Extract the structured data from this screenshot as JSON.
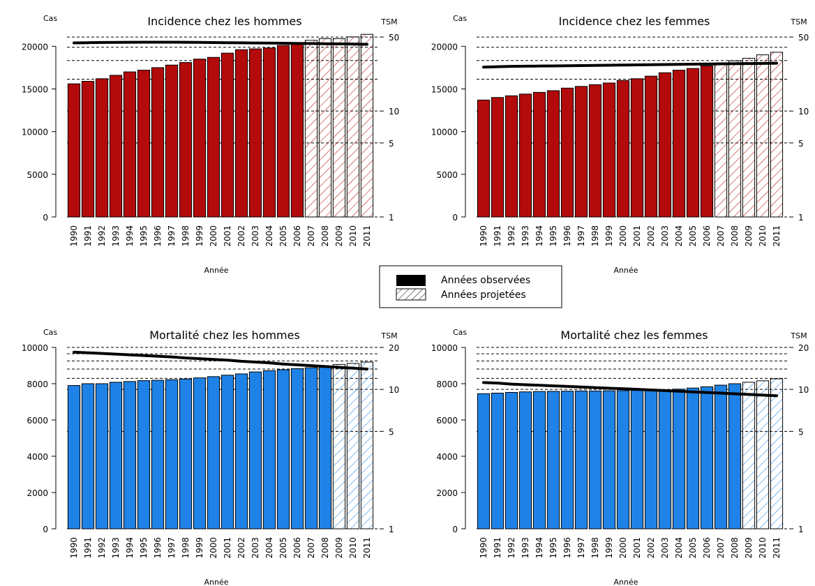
{
  "legend": {
    "observed_label": "Années observées",
    "projected_label": "Années projetées"
  },
  "colors": {
    "incidence": "#b30b0b",
    "mortality": "#1e82e6",
    "trend_line": "#000000"
  },
  "chart_data": [
    {
      "type": "bar",
      "title": "Incidence chez les hommes",
      "xlabel": "Année",
      "ylabel": "Cas",
      "y2label": "TSM",
      "ylim": [
        0,
        21500
      ],
      "yticks": [
        0,
        5000,
        10000,
        15000,
        20000
      ],
      "y2_log_scale": true,
      "y2ticks": [
        1,
        5,
        10,
        50
      ],
      "y2lim": [
        1,
        54
      ],
      "y2_gridlines": [
        5,
        10,
        20,
        30,
        40,
        50
      ],
      "categories": [
        "1990",
        "1991",
        "1992",
        "1993",
        "1994",
        "1995",
        "1996",
        "1997",
        "1998",
        "1999",
        "2000",
        "2001",
        "2002",
        "2003",
        "2004",
        "2005",
        "2006",
        "2007",
        "2008",
        "2009",
        "2010",
        "2011"
      ],
      "series": [
        {
          "type": "bar",
          "values": [
            15600,
            15900,
            16200,
            16600,
            17000,
            17200,
            17500,
            17800,
            18100,
            18500,
            18700,
            19200,
            19600,
            19700,
            19800,
            20100,
            20400,
            20700,
            20900,
            20900,
            21100,
            21400
          ],
          "projected_from": "2007"
        },
        {
          "type": "line",
          "axis": "y2",
          "values": [
            44,
            44.2,
            44.4,
            44.5,
            44.6,
            44.7,
            44.7,
            44.7,
            44.6,
            44.5,
            44.3,
            44.2,
            44.1,
            43.9,
            43.8,
            43.7,
            43.5,
            43.4,
            43.2,
            43.1,
            42.9,
            42.7
          ]
        }
      ]
    },
    {
      "type": "bar",
      "title": "Incidence chez les femmes",
      "xlabel": "Année",
      "ylabel": "Cas",
      "y2label": "TSM",
      "ylim": [
        0,
        21500
      ],
      "yticks": [
        0,
        5000,
        10000,
        15000,
        20000
      ],
      "y2_log_scale": true,
      "y2ticks": [
        1,
        5,
        10,
        50
      ],
      "y2lim": [
        1,
        54
      ],
      "y2_gridlines": [
        5,
        10,
        20,
        30,
        40,
        50
      ],
      "categories": [
        "1990",
        "1991",
        "1992",
        "1993",
        "1994",
        "1995",
        "1996",
        "1997",
        "1998",
        "1999",
        "2000",
        "2001",
        "2002",
        "2003",
        "2004",
        "2005",
        "2006",
        "2007",
        "2008",
        "2009",
        "2010",
        "2011"
      ],
      "series": [
        {
          "type": "bar",
          "values": [
            13700,
            14000,
            14200,
            14400,
            14600,
            14800,
            15100,
            15300,
            15500,
            15700,
            16000,
            16200,
            16500,
            16900,
            17200,
            17400,
            17700,
            18000,
            18300,
            18600,
            19000,
            19300
          ],
          "projected_from": "2007"
        },
        {
          "type": "line",
          "axis": "y2",
          "values": [
            26,
            26.2,
            26.4,
            26.5,
            26.6,
            26.7,
            26.8,
            26.9,
            27,
            27.1,
            27.2,
            27.3,
            27.4,
            27.5,
            27.6,
            27.7,
            27.8,
            27.9,
            28,
            28.1,
            28.2,
            28.3
          ]
        }
      ]
    },
    {
      "type": "bar",
      "title": "Mortalité chez les hommes",
      "xlabel": "Année",
      "ylabel": "Cas",
      "y2label": "TSM",
      "ylim": [
        0,
        10000
      ],
      "yticks": [
        0,
        2000,
        4000,
        6000,
        8000,
        10000
      ],
      "y2_log_scale": true,
      "y2ticks": [
        1,
        5,
        10,
        20
      ],
      "y2lim": [
        1,
        20
      ],
      "y2_gridlines": [
        5,
        10,
        12,
        14,
        16,
        18,
        20
      ],
      "categories": [
        "1990",
        "1991",
        "1992",
        "1993",
        "1994",
        "1995",
        "1996",
        "1997",
        "1998",
        "1999",
        "2000",
        "2001",
        "2002",
        "2003",
        "2004",
        "2005",
        "2006",
        "2007",
        "2008",
        "2009",
        "2010",
        "2011"
      ],
      "series": [
        {
          "type": "bar",
          "values": [
            7900,
            8000,
            8000,
            8080,
            8120,
            8170,
            8190,
            8220,
            8260,
            8320,
            8390,
            8470,
            8540,
            8650,
            8720,
            8770,
            8830,
            8880,
            8900,
            9060,
            9120,
            9190
          ],
          "projected_from": "2009"
        },
        {
          "type": "line",
          "axis": "y2",
          "values": [
            18.5,
            18.3,
            18.1,
            17.9,
            17.7,
            17.5,
            17.3,
            17.1,
            16.8,
            16.6,
            16.4,
            16.2,
            15.9,
            15.7,
            15.5,
            15.2,
            15,
            14.8,
            14.6,
            14.4,
            14.2,
            14
          ]
        }
      ]
    },
    {
      "type": "bar",
      "title": "Mortalité chez les femmes",
      "xlabel": "Année",
      "ylabel": "Cas",
      "y2label": "TSM",
      "ylim": [
        0,
        10000
      ],
      "yticks": [
        0,
        2000,
        4000,
        6000,
        8000,
        10000
      ],
      "y2_log_scale": true,
      "y2ticks": [
        1,
        5,
        10,
        20
      ],
      "y2lim": [
        1,
        20
      ],
      "y2_gridlines": [
        5,
        10,
        12,
        14,
        16,
        18,
        20
      ],
      "categories": [
        "1990",
        "1991",
        "1992",
        "1993",
        "1994",
        "1995",
        "1996",
        "1997",
        "1998",
        "1999",
        "2000",
        "2001",
        "2002",
        "2003",
        "2004",
        "2005",
        "2006",
        "2007",
        "2008",
        "2009",
        "2010",
        "2011"
      ],
      "series": [
        {
          "type": "bar",
          "values": [
            7450,
            7480,
            7520,
            7550,
            7570,
            7580,
            7590,
            7600,
            7600,
            7610,
            7620,
            7630,
            7640,
            7660,
            7700,
            7760,
            7830,
            7920,
            8000,
            8080,
            8160,
            8270
          ],
          "projected_from": "2009"
        },
        {
          "type": "line",
          "axis": "y2",
          "values": [
            11.2,
            11.1,
            10.9,
            10.8,
            10.7,
            10.6,
            10.5,
            10.4,
            10.3,
            10.2,
            10.1,
            10,
            9.9,
            9.8,
            9.7,
            9.6,
            9.5,
            9.4,
            9.3,
            9.2,
            9.1,
            9
          ]
        }
      ]
    }
  ]
}
